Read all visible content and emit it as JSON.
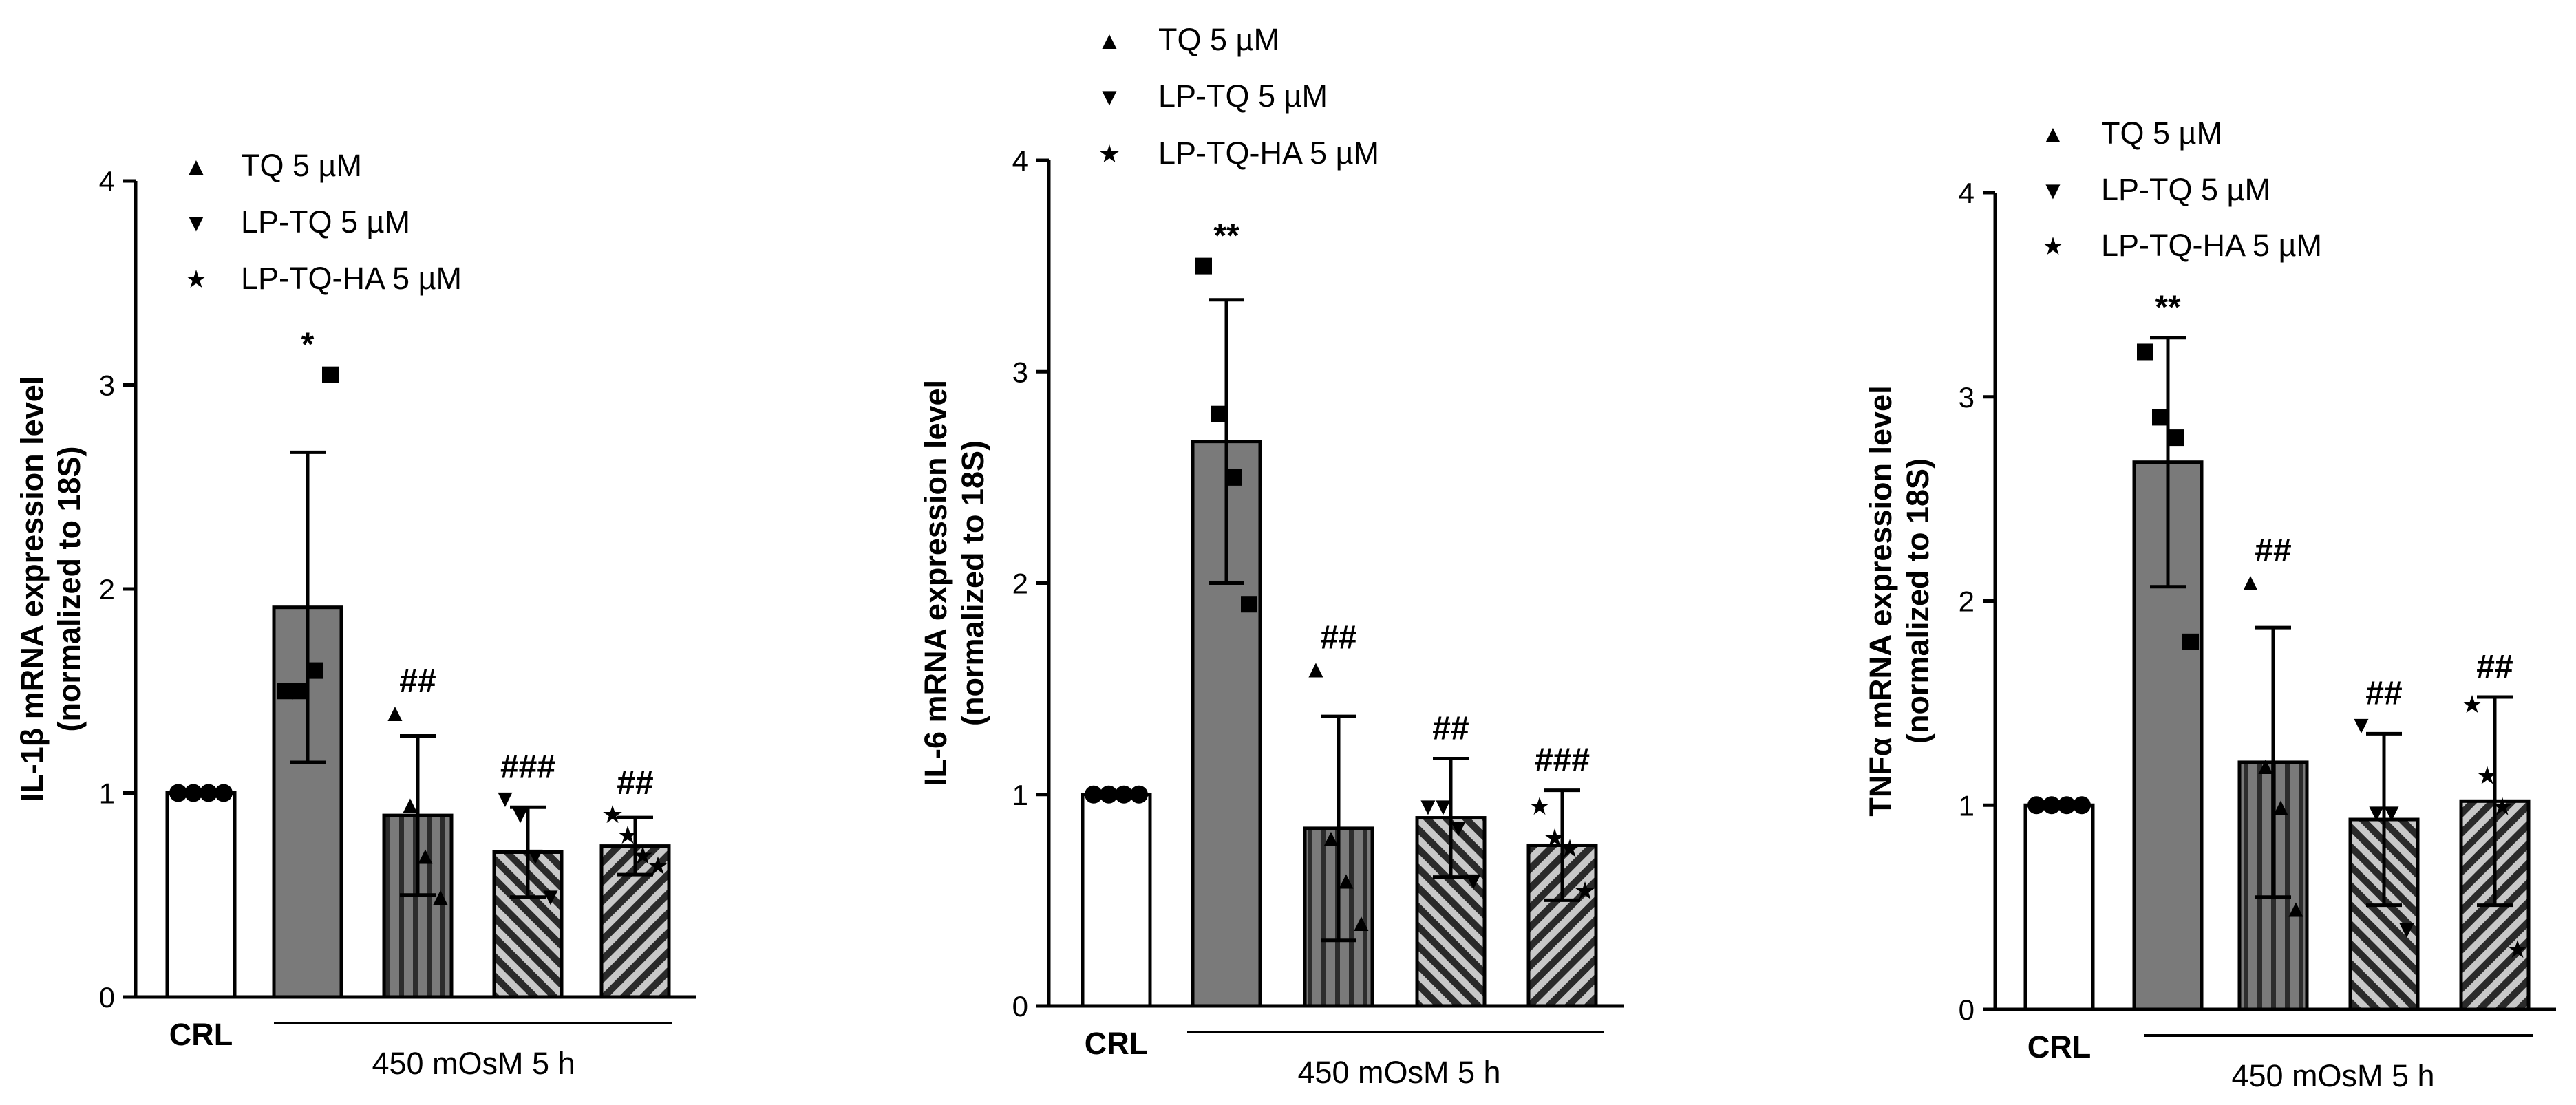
{
  "chart_data": [
    {
      "type": "bar",
      "categories": [
        "CRL",
        "450 mOsM",
        "TQ 5 µM",
        "LP-TQ 5 µM",
        "LP-TQ-HA 5 µM"
      ],
      "values": [
        1.0,
        1.91,
        0.89,
        0.71,
        0.74
      ],
      "errors": [
        0.0,
        0.76,
        0.39,
        0.22,
        0.14
      ],
      "points": [
        [
          1,
          1,
          1,
          1
        ],
        [
          1.5,
          1.5,
          1.6,
          3.05
        ],
        [
          1.4,
          0.95,
          0.7,
          0.5
        ],
        [
          0.98,
          0.9,
          0.7,
          0.5
        ],
        [
          0.9,
          0.8,
          0.7,
          0.65
        ]
      ],
      "annotations": [
        "",
        "*",
        "##",
        "###",
        "##"
      ],
      "ylabel_line1": "IL-1β mRNA expression level",
      "ylabel_line2": "(normalized to 18S)",
      "yticks": [
        "0",
        "1",
        "2",
        "3",
        "4"
      ],
      "ylim": [
        0,
        4
      ],
      "control_label": "CRL",
      "condition_label": "450 mOsM 5 h",
      "legend": [
        {
          "marker": "▲",
          "label": "TQ 5 µM"
        },
        {
          "marker": "▼",
          "label": "LP-TQ 5 µM"
        },
        {
          "marker": "★",
          "label": "LP-TQ-HA 5 µM"
        }
      ]
    },
    {
      "type": "bar",
      "categories": [
        "CRL",
        "450 mOsM",
        "TQ 5 µM",
        "LP-TQ 5 µM",
        "LP-TQ-HA 5 µM"
      ],
      "values": [
        1.0,
        2.67,
        0.84,
        0.89,
        0.76
      ],
      "errors": [
        0.0,
        0.67,
        0.53,
        0.28,
        0.26
      ],
      "points": [
        [
          1,
          1,
          1,
          1
        ],
        [
          3.5,
          2.8,
          2.5,
          1.9
        ],
        [
          1.6,
          0.8,
          0.6,
          0.4
        ],
        [
          0.95,
          0.95,
          0.85,
          0.6
        ],
        [
          0.95,
          0.8,
          0.75,
          0.55
        ]
      ],
      "annotations": [
        "",
        "**",
        "##",
        "##",
        "###"
      ],
      "ylabel_line1": "IL-6 mRNA expression level",
      "ylabel_line2": "(normalized to 18S)",
      "yticks": [
        "0",
        "1",
        "2",
        "3",
        "4"
      ],
      "ylim": [
        0,
        4
      ],
      "control_label": "CRL",
      "condition_label": "450 mOsM 5 h",
      "legend": [
        {
          "marker": "▲",
          "label": "TQ 5 µM"
        },
        {
          "marker": "▼",
          "label": "LP-TQ 5 µM"
        },
        {
          "marker": "★",
          "label": "LP-TQ-HA 5 µM"
        }
      ]
    },
    {
      "type": "bar",
      "categories": [
        "CRL",
        "450 mOsM",
        "TQ 5 µM",
        "LP-TQ 5 µM",
        "LP-TQ-HA 5 µM"
      ],
      "values": [
        1.0,
        2.68,
        1.21,
        0.93,
        1.02
      ],
      "errors": [
        0.0,
        0.61,
        0.66,
        0.42,
        0.51
      ],
      "points": [
        [
          1,
          1,
          1,
          1
        ],
        [
          3.22,
          2.9,
          2.8,
          1.8
        ],
        [
          2.1,
          1.2,
          1.0,
          0.5
        ],
        [
          1.4,
          0.97,
          0.97,
          0.4
        ],
        [
          1.5,
          1.15,
          1.0,
          0.3
        ]
      ],
      "annotations": [
        "",
        "**",
        "##",
        "##",
        "##"
      ],
      "ylabel_line1": "TNFα mRNA expression level",
      "ylabel_line2": "(normalized to 18S)",
      "yticks": [
        "0",
        "1",
        "2",
        "3",
        "4"
      ],
      "ylim": [
        0,
        4
      ],
      "control_label": "CRL",
      "condition_label": "450 mOsM 5 h",
      "legend": [
        {
          "marker": "▲",
          "label": "TQ 5 µM"
        },
        {
          "marker": "▼",
          "label": "LP-TQ 5 µM"
        },
        {
          "marker": "★",
          "label": "LP-TQ-HA 5 µM"
        }
      ]
    }
  ]
}
